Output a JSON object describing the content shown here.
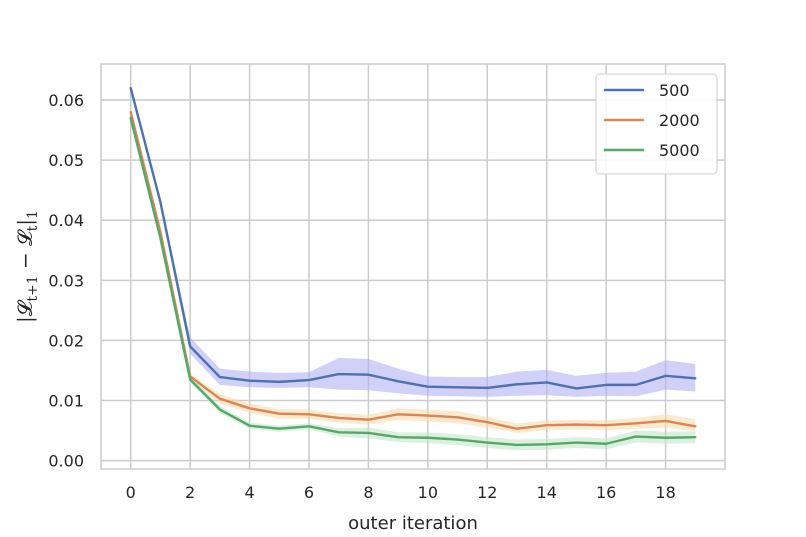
{
  "chart_data": {
    "type": "line",
    "title": "",
    "xlabel": "outer iteration",
    "ylabel": "|𝓛t+1 − 𝓛t|1",
    "ylabel_parts": {
      "open": "|𝓛",
      "sub1": "t+1",
      "minus": " − 𝓛",
      "sub2": "t",
      "close": "|",
      "sub3": "1"
    },
    "xlim": [
      -1,
      20
    ],
    "ylim": [
      -0.0014,
      0.066
    ],
    "xticks": [
      0,
      2,
      4,
      6,
      8,
      10,
      12,
      14,
      16,
      18
    ],
    "yticks": [
      0.0,
      0.01,
      0.02,
      0.03,
      0.04,
      0.05,
      0.06
    ],
    "ytick_labels": [
      "0.00",
      "0.01",
      "0.02",
      "0.03",
      "0.04",
      "0.05",
      "0.06"
    ],
    "grid": true,
    "legend_position": "top-right",
    "x": [
      0,
      1,
      2,
      3,
      4,
      5,
      6,
      7,
      8,
      9,
      10,
      11,
      12,
      13,
      14,
      15,
      16,
      17,
      18,
      19
    ],
    "series": [
      {
        "name": "500",
        "color": "#4c72b0",
        "band_color": "#a9a9f2",
        "values": [
          0.062,
          0.043,
          0.019,
          0.0139,
          0.0133,
          0.0131,
          0.0134,
          0.0144,
          0.0143,
          0.0132,
          0.0123,
          0.0122,
          0.0121,
          0.0127,
          0.013,
          0.012,
          0.0126,
          0.0126,
          0.0141,
          0.0137
        ],
        "lower": [
          0.0615,
          0.0422,
          0.0178,
          0.0126,
          0.0122,
          0.0121,
          0.0122,
          0.0118,
          0.0117,
          0.0112,
          0.0108,
          0.0107,
          0.0106,
          0.0108,
          0.0109,
          0.0106,
          0.0108,
          0.0107,
          0.0118,
          0.0115
        ],
        "upper": [
          0.0625,
          0.0438,
          0.0205,
          0.0153,
          0.0148,
          0.0146,
          0.0147,
          0.0171,
          0.0169,
          0.0153,
          0.014,
          0.0139,
          0.0139,
          0.0148,
          0.0151,
          0.0141,
          0.0146,
          0.0148,
          0.0167,
          0.0161
        ]
      },
      {
        "name": "2000",
        "color": "#dd8452",
        "band_color": "#f6d8a8",
        "values": [
          0.058,
          0.038,
          0.014,
          0.0103,
          0.0087,
          0.0078,
          0.0077,
          0.0071,
          0.0068,
          0.0077,
          0.0075,
          0.0072,
          0.0064,
          0.0053,
          0.0059,
          0.006,
          0.0059,
          0.0062,
          0.0066,
          0.0057
        ],
        "lower": [
          0.0575,
          0.0375,
          0.0135,
          0.0095,
          0.0079,
          0.007,
          0.0069,
          0.0063,
          0.006,
          0.0067,
          0.0065,
          0.0062,
          0.0055,
          0.0046,
          0.0051,
          0.0052,
          0.0051,
          0.0053,
          0.0055,
          0.0049
        ],
        "upper": [
          0.0585,
          0.0385,
          0.0145,
          0.0111,
          0.0095,
          0.0086,
          0.0085,
          0.0079,
          0.0076,
          0.0087,
          0.0085,
          0.0082,
          0.0073,
          0.0062,
          0.0067,
          0.0068,
          0.0067,
          0.0071,
          0.0077,
          0.0069
        ]
      },
      {
        "name": "5000",
        "color": "#55a868",
        "band_color": "#bde3c4",
        "values": [
          0.057,
          0.037,
          0.0135,
          0.0085,
          0.0058,
          0.0053,
          0.0057,
          0.0047,
          0.0046,
          0.0039,
          0.0038,
          0.0035,
          0.003,
          0.0026,
          0.0027,
          0.003,
          0.0028,
          0.004,
          0.0038,
          0.0039
        ],
        "lower": [
          0.0565,
          0.0365,
          0.013,
          0.0079,
          0.0053,
          0.0048,
          0.0052,
          0.004,
          0.0037,
          0.0031,
          0.0029,
          0.0026,
          0.0021,
          0.0017,
          0.0018,
          0.0021,
          0.0019,
          0.003,
          0.0028,
          0.0029
        ],
        "upper": [
          0.0575,
          0.0375,
          0.014,
          0.0091,
          0.0063,
          0.0058,
          0.0062,
          0.0054,
          0.0055,
          0.0047,
          0.0047,
          0.0044,
          0.0039,
          0.0035,
          0.0036,
          0.0039,
          0.0037,
          0.005,
          0.0048,
          0.0049
        ]
      }
    ]
  },
  "colors": {
    "background": "#ffffff",
    "grid": "#cccccc",
    "spine": "#cccccc",
    "text": "#262626",
    "legend_border": "#cccccc"
  }
}
